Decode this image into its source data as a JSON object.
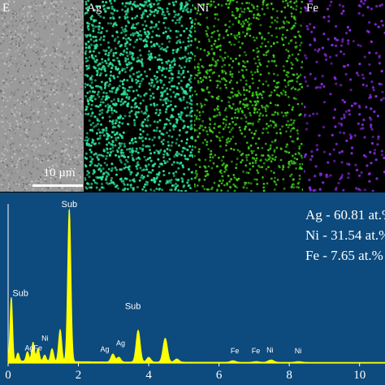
{
  "panels": {
    "se": {
      "label": "E",
      "scale_label": "10 µm"
    },
    "ag": {
      "label": "Ag",
      "color": "#2ee59a"
    },
    "ni": {
      "label": "Ni",
      "color": "#3fd21e"
    },
    "fe": {
      "label": "Fe",
      "color": "#8a2be2"
    }
  },
  "colors": {
    "plot_bg": "#0d4a7d",
    "spectrum": "#ffff00",
    "text": "#ffffff"
  },
  "chart_data": {
    "type": "line",
    "title": "",
    "xlabel": "",
    "ylabel": "",
    "xlim": [
      0,
      10.4
    ],
    "x_ticks": [
      "0",
      "2",
      "4",
      "6",
      "8",
      "10"
    ],
    "composition": [
      "Ag - 60.81 at.%",
      "Ni - 31.54 at.%",
      "Fe - 7.65 at.%"
    ],
    "peaks": [
      {
        "x": 0.09,
        "height": 0.4
      },
      {
        "x": 0.28,
        "height": 0.05
      },
      {
        "x": 0.55,
        "height": 0.06
      },
      {
        "x": 0.71,
        "height": 0.12
      },
      {
        "x": 0.85,
        "height": 0.08
      },
      {
        "x": 1.04,
        "height": 0.04
      },
      {
        "x": 1.25,
        "height": 0.08
      },
      {
        "x": 1.48,
        "height": 0.2
      },
      {
        "x": 1.74,
        "height": 0.96
      },
      {
        "x": 2.98,
        "height": 0.05
      },
      {
        "x": 3.15,
        "height": 0.03
      },
      {
        "x": 3.7,
        "height": 0.2
      },
      {
        "x": 4.0,
        "height": 0.03
      },
      {
        "x": 4.47,
        "height": 0.15
      },
      {
        "x": 4.8,
        "height": 0.02
      },
      {
        "x": 6.4,
        "height": 0.01
      },
      {
        "x": 7.06,
        "height": 0.005
      },
      {
        "x": 7.48,
        "height": 0.015
      },
      {
        "x": 8.26,
        "height": 0.005
      }
    ],
    "annotations": [
      {
        "text": "Sub",
        "x": 1.74,
        "y": 0.97,
        "size": 11
      },
      {
        "text": "Sub",
        "x": 0.35,
        "y": 0.41,
        "size": 11
      },
      {
        "text": "Ag",
        "x": 0.6,
        "y": 0.07,
        "size": 9
      },
      {
        "text": "Fe",
        "x": 0.85,
        "y": 0.07,
        "size": 9
      },
      {
        "text": "Ni",
        "x": 1.05,
        "y": 0.13,
        "size": 9
      },
      {
        "text": "Sub",
        "x": 3.55,
        "y": 0.33,
        "size": 11
      },
      {
        "text": "Ag",
        "x": 3.2,
        "y": 0.1,
        "size": 9
      },
      {
        "text": "Ag",
        "x": 2.75,
        "y": 0.06,
        "size": 9
      },
      {
        "text": "Fe",
        "x": 6.45,
        "y": 0.05,
        "size": 9
      },
      {
        "text": "Fe",
        "x": 7.05,
        "y": 0.05,
        "size": 9
      },
      {
        "text": "Ni",
        "x": 7.45,
        "y": 0.055,
        "size": 9
      },
      {
        "text": "Ni",
        "x": 8.25,
        "y": 0.05,
        "size": 9
      }
    ]
  }
}
